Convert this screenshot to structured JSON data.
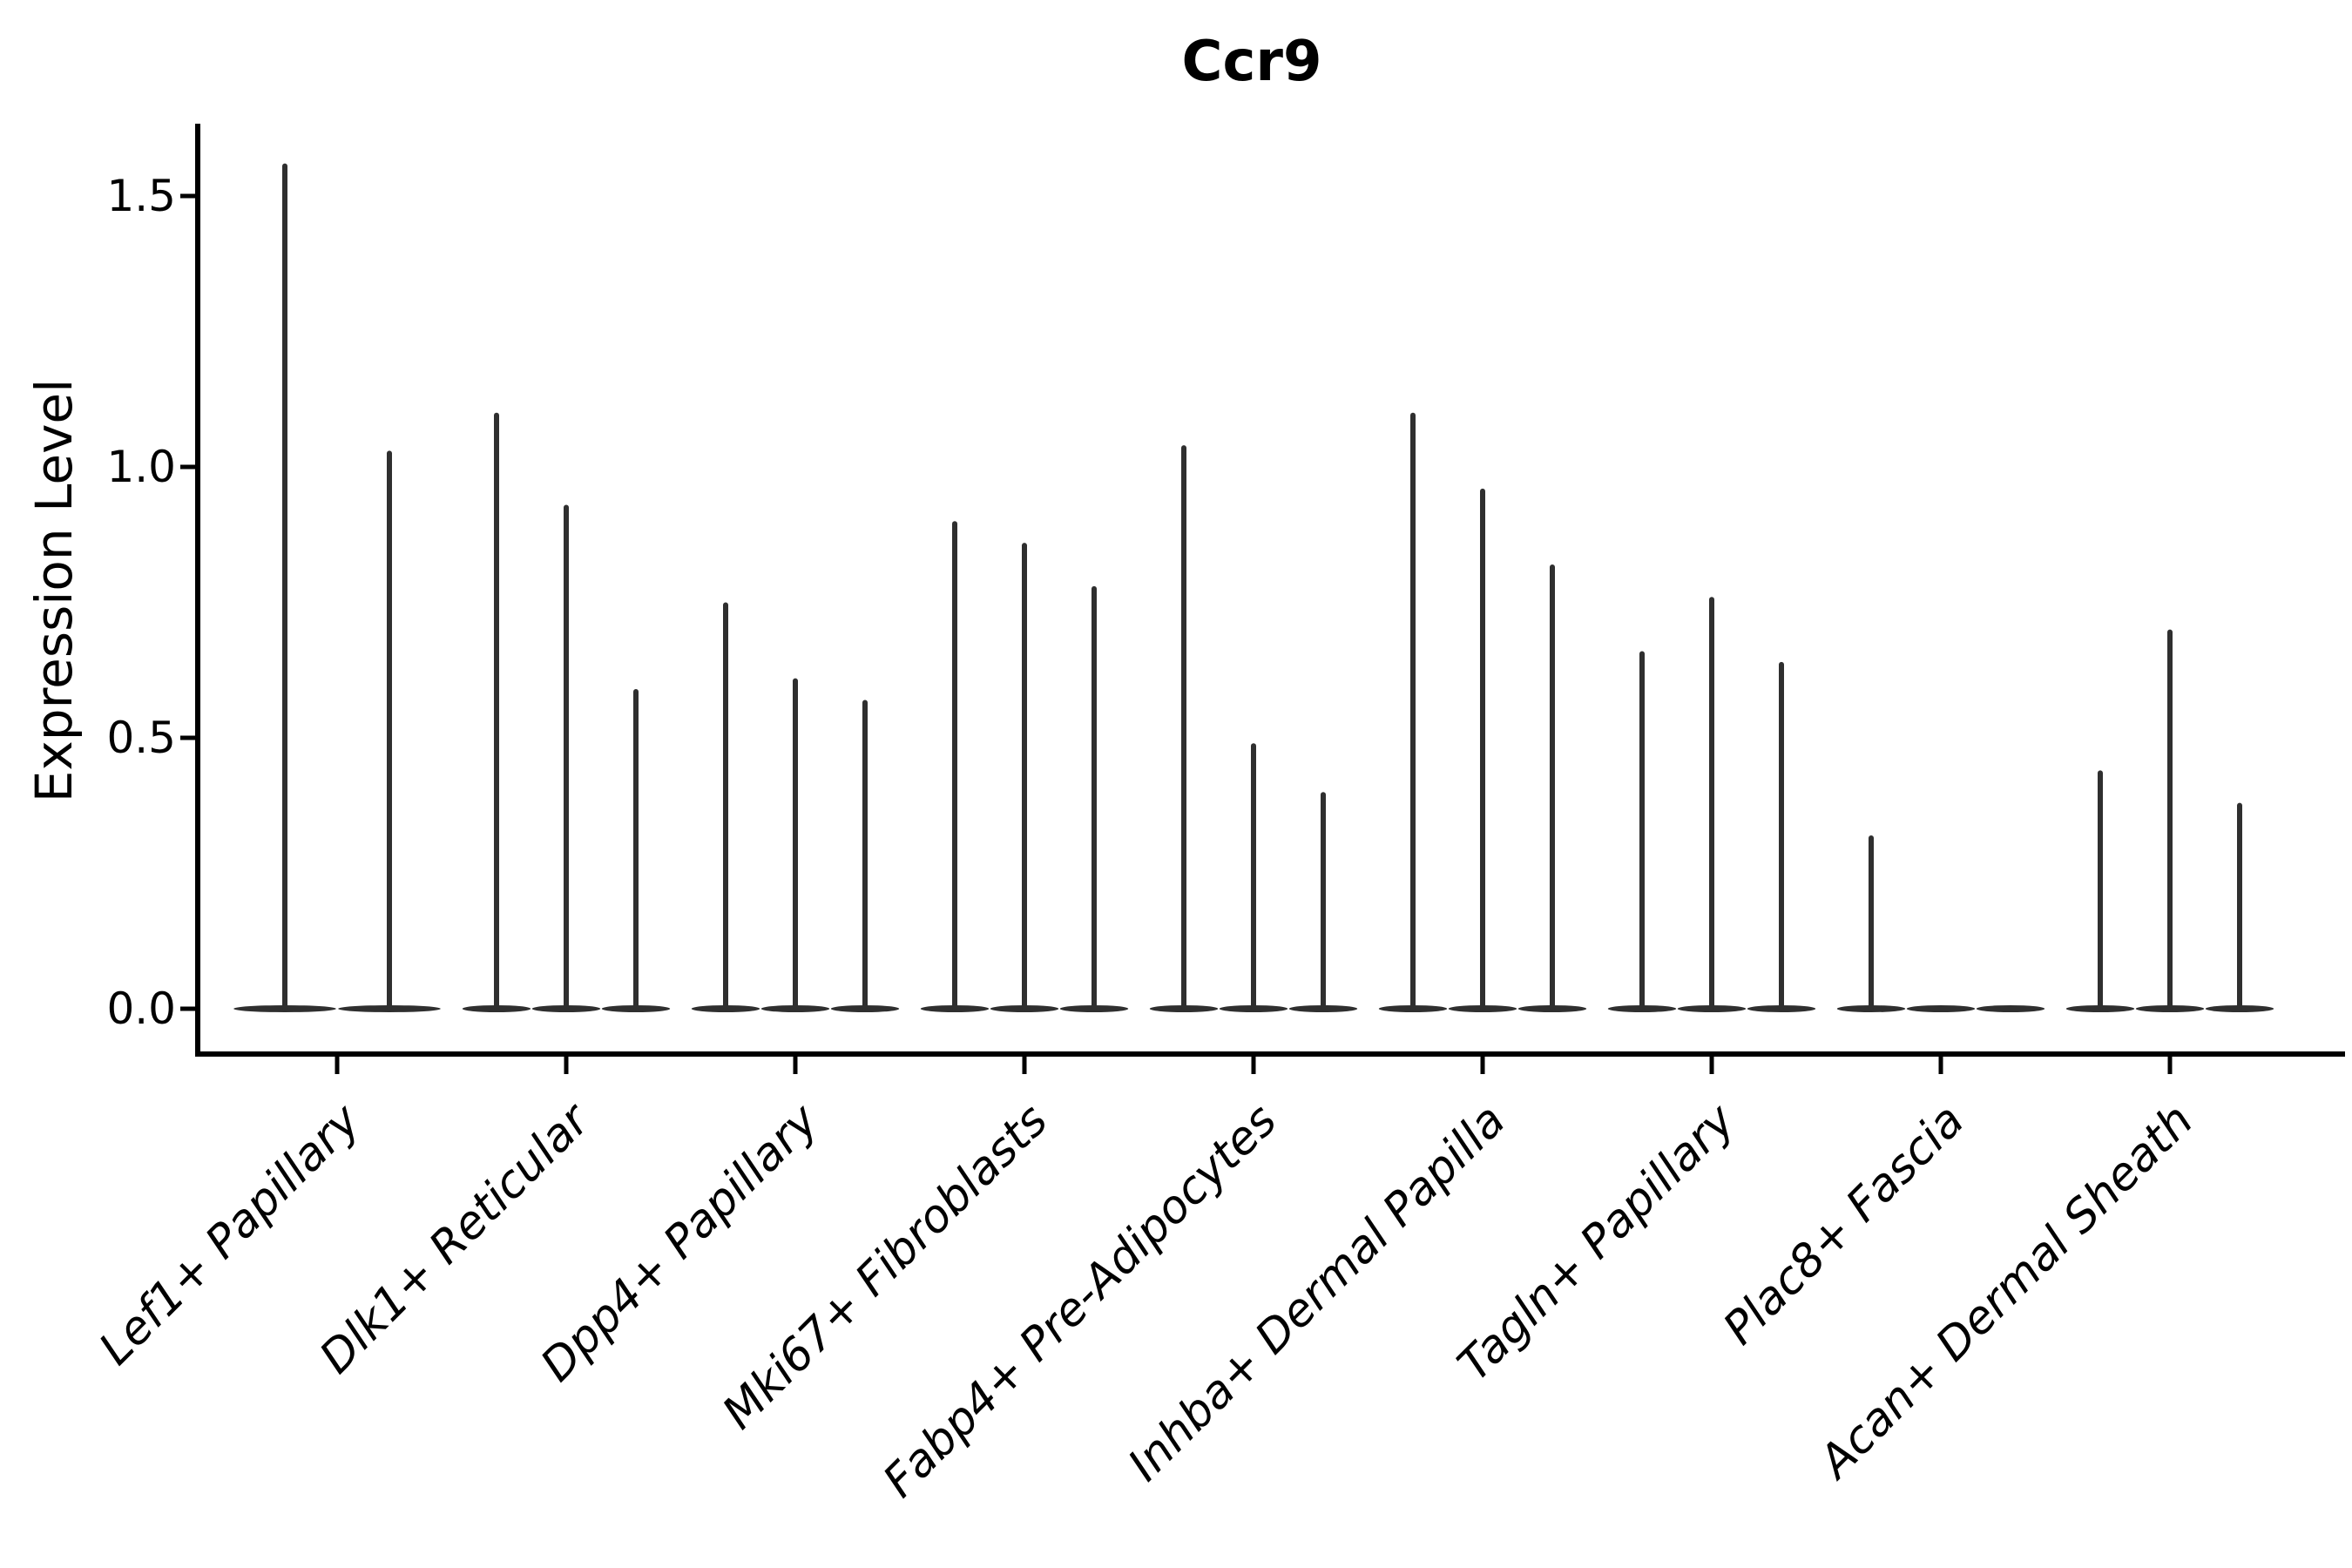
{
  "title": "Ccr9",
  "y_axis": {
    "label": "Expression Level",
    "ticks": [
      {
        "label": "1.5",
        "value": 1.5
      },
      {
        "label": "1.0",
        "value": 1.0
      },
      {
        "label": "0.5",
        "value": 0.5
      },
      {
        "label": "0.0",
        "value": 0.0
      }
    ]
  },
  "colors": {
    "violin": "#2f2f2f",
    "axis": "#000000",
    "text": "#000000"
  },
  "chart_data": {
    "type": "violin",
    "title": "Ccr9",
    "xlabel": "",
    "ylabel": "Expression Level",
    "ylim": [
      0,
      1.6
    ],
    "yticks": [
      0.0,
      0.5,
      1.0,
      1.5
    ],
    "grid": false,
    "legend_position": "none",
    "categories": [
      "Lef1+ Papillary",
      "Dlk1+ Reticular",
      "Dpp4+ Papillary",
      "Mki67+ Fibroblasts",
      "Fabp4+ Pre-Adipocytes",
      "Inhba+ Dermal Papilla",
      "Tagln+ Papillary",
      "Plac8+ Fascia",
      "Acan+ Dermal Sheath"
    ],
    "groups": [
      {
        "label": "Lef1+ Papillary",
        "violin_max_values": [
          1.56,
          1.03
        ]
      },
      {
        "label": "Dlk1+ Reticular",
        "violin_max_values": [
          1.1,
          0.93,
          0.59
        ]
      },
      {
        "label": "Dpp4+ Papillary",
        "violin_max_values": [
          0.75,
          0.61,
          0.57
        ]
      },
      {
        "label": "Mki67+ Fibroblasts",
        "violin_max_values": [
          0.9,
          0.86,
          0.78
        ]
      },
      {
        "label": "Fabp4+ Pre-Adipocytes",
        "violin_max_values": [
          1.04,
          0.49,
          0.4
        ]
      },
      {
        "label": "Inhba+ Dermal Papilla",
        "violin_max_values": [
          1.1,
          0.96,
          0.82
        ]
      },
      {
        "label": "Tagln+ Papillary",
        "violin_max_values": [
          0.66,
          0.76,
          0.64
        ]
      },
      {
        "label": "Plac8+ Fascia",
        "violin_max_values": [
          0.32,
          0.0,
          0.0
        ]
      },
      {
        "label": "Acan+ Dermal Sheath",
        "violin_max_values": [
          0.44,
          0.7,
          0.38
        ]
      }
    ]
  }
}
